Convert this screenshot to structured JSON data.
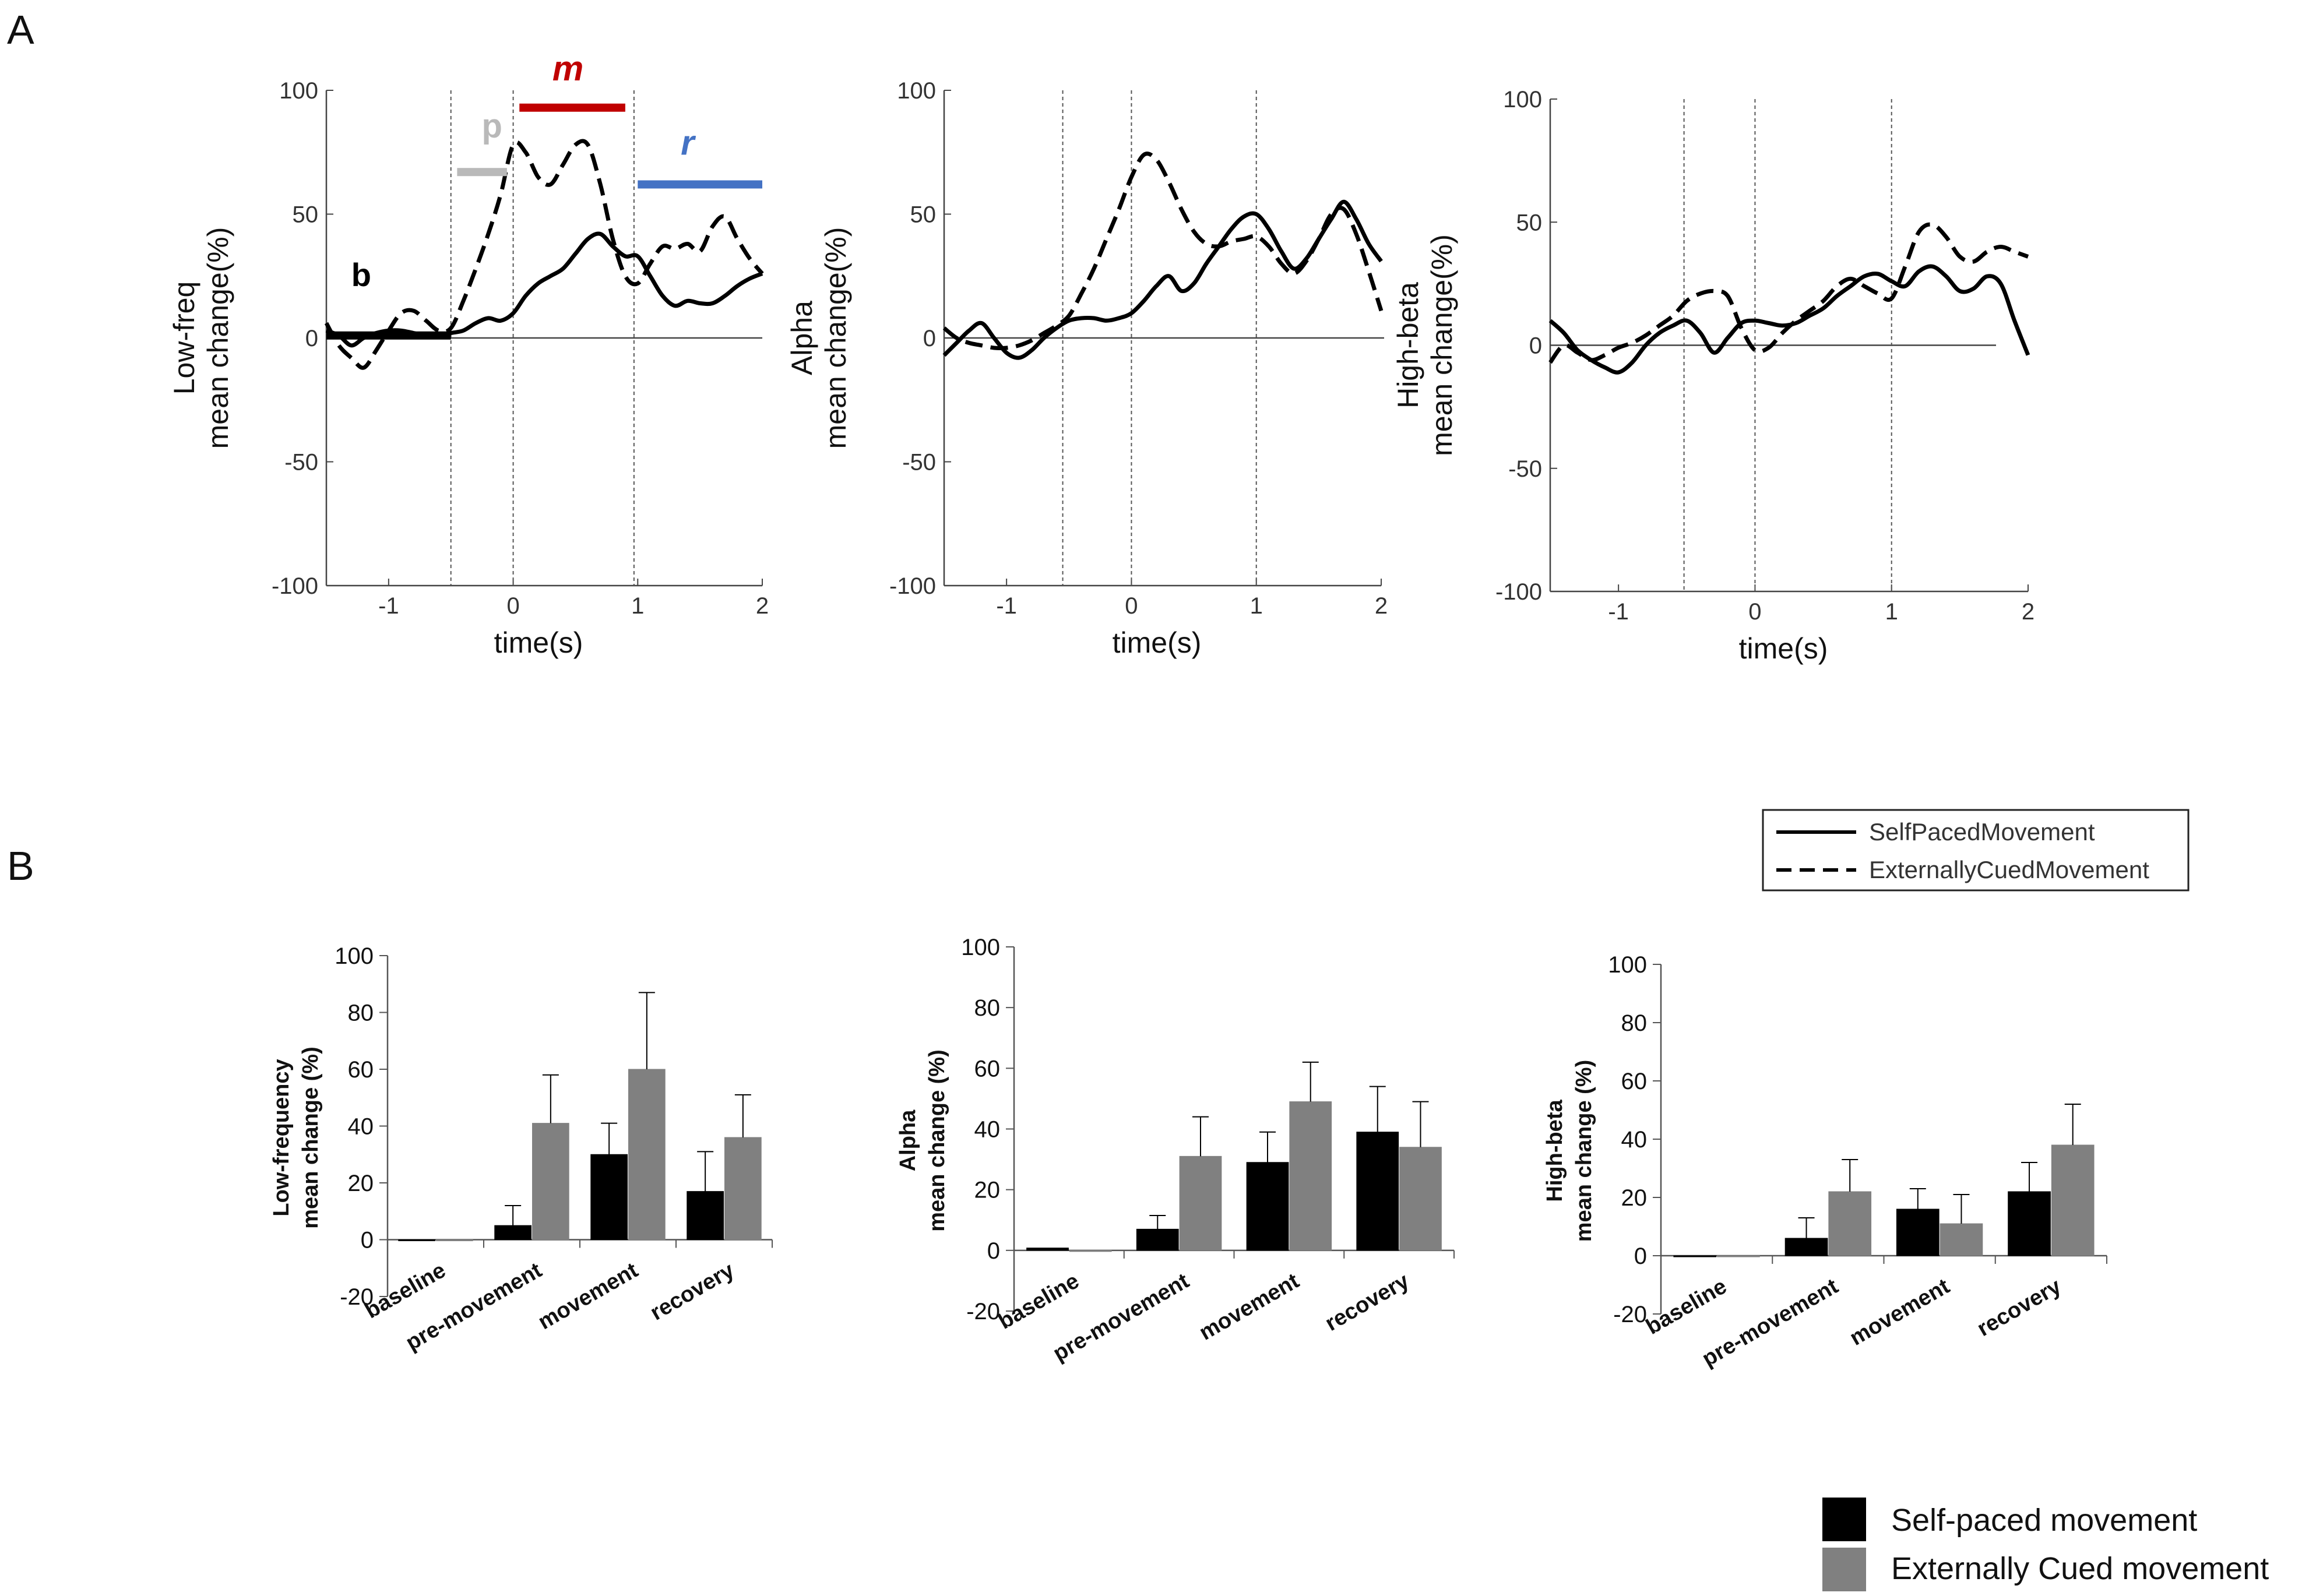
{
  "panels": {
    "a": "A",
    "b": "B"
  },
  "time_plots": {
    "xlabel": "time(s)",
    "xticks": [
      -1,
      0,
      1,
      2
    ],
    "yticks": [
      -100,
      -50,
      0,
      50,
      100
    ],
    "epoch_labels": {
      "baseline": "b",
      "premovement": "p",
      "movement": "m",
      "recovery": "r"
    },
    "epoch_colors": {
      "baseline": "#000000",
      "premovement": "#b9b9b9",
      "movement": "#c00000",
      "recovery": "#4472c4"
    }
  },
  "bar_legend": {
    "self": "Self-paced movement",
    "cued": "Externally Cued movement",
    "self_color": "#000000",
    "cued_color": "#808080"
  },
  "line_legend": {
    "self": "SelfPacedMovement",
    "cued": "ExternallyCuedMovement"
  },
  "chart_data": [
    {
      "type": "line",
      "title": "",
      "ylabel_1": "Low-freq",
      "ylabel_2": "mean change(%)",
      "xlabel": "time(s)",
      "xlim": [
        -1.5,
        2
      ],
      "ylim": [
        -100,
        100
      ],
      "vlines": [
        -0.5,
        0,
        0.97
      ],
      "epochs": {
        "baseline": {
          "x": [
            -1.5,
            -0.5
          ],
          "y": 1
        },
        "premovement": {
          "x": [
            -0.45,
            -0.05
          ],
          "y": 67
        },
        "movement": {
          "x": [
            0.05,
            0.9
          ],
          "y": 93
        },
        "recovery": {
          "x": [
            1.0,
            2.0
          ],
          "y": 62
        }
      },
      "series": [
        {
          "name": "SelfPacedMovement",
          "x": [
            -1.5,
            -1.4,
            -1.3,
            -1.2,
            -1.1,
            -1.0,
            -0.9,
            -0.8,
            -0.7,
            -0.6,
            -0.5,
            -0.4,
            -0.3,
            -0.2,
            -0.1,
            0.0,
            0.1,
            0.2,
            0.3,
            0.4,
            0.5,
            0.6,
            0.7,
            0.8,
            0.9,
            1.0,
            1.1,
            1.2,
            1.3,
            1.4,
            1.5,
            1.6,
            1.7,
            1.8,
            1.9,
            2.0
          ],
          "y": [
            3,
            1,
            -3,
            0,
            2,
            3,
            3,
            2,
            1,
            1,
            2,
            3,
            6,
            8,
            7,
            10,
            17,
            22,
            25,
            28,
            34,
            40,
            42,
            37,
            33,
            33,
            25,
            17,
            13,
            15,
            14,
            14,
            17,
            21,
            24,
            26
          ]
        },
        {
          "name": "ExternallyCuedMovement",
          "x": [
            -1.5,
            -1.4,
            -1.3,
            -1.2,
            -1.1,
            -1.0,
            -0.9,
            -0.8,
            -0.7,
            -0.6,
            -0.5,
            -0.4,
            -0.3,
            -0.2,
            -0.1,
            0.0,
            0.1,
            0.2,
            0.3,
            0.4,
            0.5,
            0.6,
            0.7,
            0.8,
            0.9,
            1.0,
            1.1,
            1.2,
            1.3,
            1.4,
            1.5,
            1.6,
            1.7,
            1.8,
            1.9,
            2.0
          ],
          "y": [
            6,
            -3,
            -8,
            -12,
            -5,
            3,
            10,
            11,
            7,
            3,
            4,
            15,
            28,
            42,
            58,
            78,
            75,
            65,
            62,
            70,
            78,
            78,
            62,
            40,
            25,
            22,
            30,
            37,
            36,
            38,
            35,
            45,
            49,
            40,
            32,
            26
          ]
        }
      ]
    },
    {
      "type": "line",
      "title": "",
      "ylabel_1": "Alpha",
      "ylabel_2": "mean change(%)",
      "xlabel": "time(s)",
      "xlim": [
        -1.5,
        2
      ],
      "ylim": [
        -100,
        100
      ],
      "vlines": [
        -0.55,
        0,
        1
      ],
      "series": [
        {
          "name": "SelfPacedMovement",
          "x": [
            -1.5,
            -1.4,
            -1.3,
            -1.2,
            -1.1,
            -1.0,
            -0.9,
            -0.8,
            -0.7,
            -0.6,
            -0.5,
            -0.4,
            -0.3,
            -0.2,
            -0.1,
            0.0,
            0.1,
            0.2,
            0.3,
            0.4,
            0.5,
            0.6,
            0.7,
            0.8,
            0.9,
            1.0,
            1.1,
            1.2,
            1.3,
            1.4,
            1.5,
            1.6,
            1.7,
            1.8,
            1.9,
            2.0
          ],
          "y": [
            -7,
            -2,
            3,
            6,
            0,
            -6,
            -8,
            -5,
            0,
            4,
            7,
            8,
            8,
            7,
            8,
            10,
            15,
            21,
            25,
            19,
            22,
            30,
            37,
            44,
            49,
            50,
            44,
            35,
            28,
            32,
            40,
            48,
            55,
            48,
            38,
            31
          ]
        },
        {
          "name": "ExternallyCuedMovement",
          "x": [
            -1.5,
            -1.4,
            -1.3,
            -1.2,
            -1.1,
            -1.0,
            -0.9,
            -0.8,
            -0.7,
            -0.6,
            -0.5,
            -0.4,
            -0.3,
            -0.2,
            -0.1,
            0.0,
            0.1,
            0.2,
            0.3,
            0.4,
            0.5,
            0.6,
            0.7,
            0.8,
            0.9,
            1.0,
            1.1,
            1.2,
            1.3,
            1.4,
            1.5,
            1.6,
            1.7,
            1.8,
            1.9,
            2.0
          ],
          "y": [
            4,
            0,
            -2,
            -3,
            -4,
            -4,
            -3,
            -1,
            2,
            5,
            9,
            18,
            28,
            40,
            52,
            65,
            74,
            72,
            63,
            52,
            43,
            38,
            37,
            39,
            40,
            41,
            37,
            30,
            26,
            31,
            40,
            50,
            52,
            42,
            27,
            11
          ]
        }
      ]
    },
    {
      "type": "line",
      "title": "",
      "ylabel_1": "High-beta",
      "ylabel_2": "mean change(%)",
      "xlabel": "time(s)",
      "xlim": [
        -1.5,
        2
      ],
      "ylim": [
        -100,
        100
      ],
      "vlines": [
        -0.52,
        0,
        1
      ],
      "series": [
        {
          "name": "SelfPacedMovement",
          "x": [
            -1.5,
            -1.4,
            -1.3,
            -1.2,
            -1.1,
            -1.0,
            -0.9,
            -0.8,
            -0.7,
            -0.6,
            -0.5,
            -0.4,
            -0.3,
            -0.2,
            -0.1,
            0.0,
            0.1,
            0.2,
            0.3,
            0.4,
            0.5,
            0.6,
            0.7,
            0.8,
            0.9,
            1.0,
            1.1,
            1.2,
            1.3,
            1.4,
            1.5,
            1.6,
            1.7,
            1.8,
            1.9,
            2.0
          ],
          "y": [
            10,
            5,
            -2,
            -6,
            -9,
            -11,
            -7,
            0,
            5,
            8,
            10,
            5,
            -3,
            3,
            9,
            10,
            9,
            8,
            9,
            12,
            15,
            20,
            24,
            28,
            29,
            26,
            24,
            30,
            32,
            28,
            22,
            23,
            28,
            25,
            10,
            -4
          ]
        },
        {
          "name": "ExternallyCuedMovement",
          "x": [
            -1.5,
            -1.4,
            -1.3,
            -1.2,
            -1.1,
            -1.0,
            -0.9,
            -0.8,
            -0.7,
            -0.6,
            -0.5,
            -0.4,
            -0.3,
            -0.2,
            -0.1,
            0.0,
            0.1,
            0.2,
            0.3,
            0.4,
            0.5,
            0.6,
            0.7,
            0.8,
            0.9,
            1.0,
            1.1,
            1.2,
            1.3,
            1.4,
            1.5,
            1.6,
            1.7,
            1.8,
            1.9,
            2.0
          ],
          "y": [
            -7,
            0,
            -3,
            -6,
            -4,
            -1,
            1,
            4,
            8,
            12,
            18,
            21,
            22,
            20,
            7,
            -2,
            -1,
            5,
            10,
            14,
            18,
            24,
            27,
            24,
            21,
            19,
            32,
            46,
            49,
            44,
            36,
            34,
            38,
            40,
            38,
            36
          ]
        }
      ]
    },
    {
      "type": "bar",
      "ylabel_1": "Low-frequency",
      "ylabel_2": "mean change (%)",
      "categories": [
        "baseline",
        "pre-movement",
        "movement",
        "recovery"
      ],
      "ylim": [
        -20,
        100
      ],
      "yticks": [
        -20,
        0,
        20,
        40,
        60,
        80,
        100
      ],
      "series": [
        {
          "name": "Self-paced movement",
          "values": [
            0,
            5,
            30,
            17
          ],
          "errors": [
            0,
            7,
            11,
            14
          ]
        },
        {
          "name": "Externally Cued movement",
          "values": [
            -0.3,
            41,
            60,
            36
          ],
          "errors": [
            0,
            17,
            27,
            15
          ]
        }
      ]
    },
    {
      "type": "bar",
      "ylabel_1": "Alpha",
      "ylabel_2": "mean change (%)",
      "categories": [
        "baseline",
        "pre-movement",
        "movement",
        "recovery"
      ],
      "ylim": [
        -20,
        100
      ],
      "yticks": [
        -20,
        0,
        20,
        40,
        60,
        80,
        100
      ],
      "series": [
        {
          "name": "Self-paced movement",
          "values": [
            0.8,
            7,
            29,
            39
          ],
          "errors": [
            0,
            4.5,
            10,
            15
          ]
        },
        {
          "name": "Externally Cued movement",
          "values": [
            -0.3,
            31,
            49,
            34
          ],
          "errors": [
            0,
            13,
            13,
            15
          ]
        }
      ]
    },
    {
      "type": "bar",
      "ylabel_1": "High-beta",
      "ylabel_2": "mean change (%)",
      "categories": [
        "baseline",
        "pre-movement",
        "movement",
        "recovery"
      ],
      "ylim": [
        -20,
        100
      ],
      "yticks": [
        -20,
        0,
        20,
        40,
        60,
        80,
        100
      ],
      "series": [
        {
          "name": "Self-paced movement",
          "values": [
            0,
            6,
            16,
            22
          ],
          "errors": [
            0,
            7,
            7,
            10
          ]
        },
        {
          "name": "Externally Cued movement",
          "values": [
            0,
            22,
            11,
            38
          ],
          "errors": [
            0,
            11,
            10,
            14
          ]
        }
      ]
    }
  ]
}
